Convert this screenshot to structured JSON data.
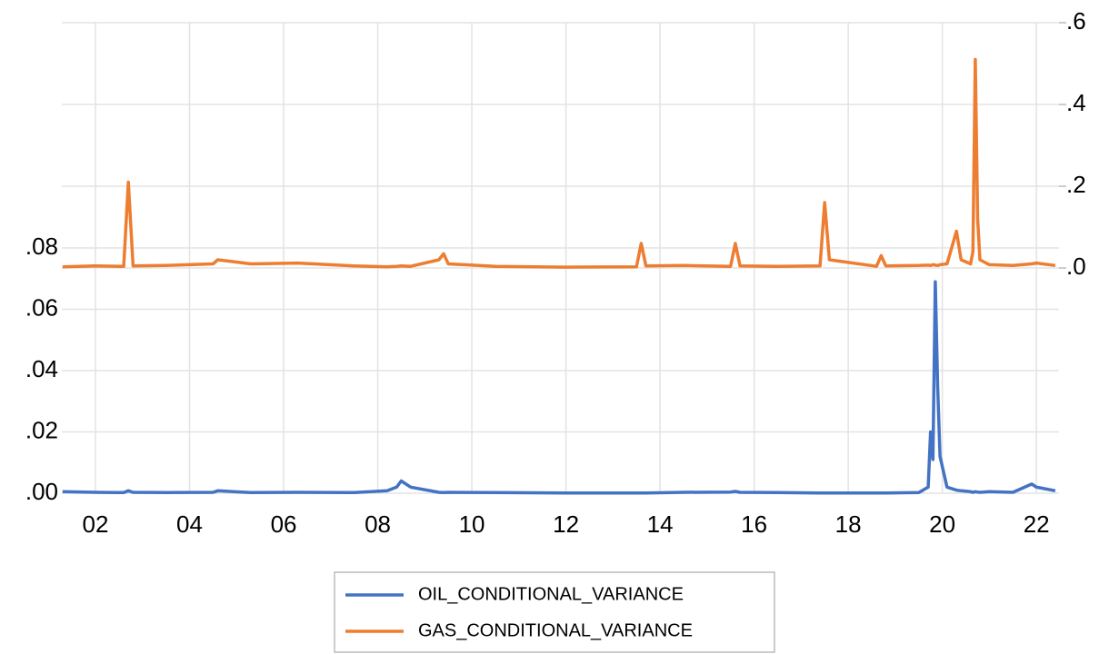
{
  "chart_data": {
    "type": "line",
    "x": [
      2001.3,
      2002.0,
      2002.6,
      2002.7,
      2002.8,
      2003.5,
      2004.5,
      2004.6,
      2005.3,
      2006.3,
      2007.5,
      2008.2,
      2008.4,
      2008.5,
      2008.7,
      2009.3,
      2009.4,
      2009.5,
      2010.5,
      2012.0,
      2013.5,
      2013.6,
      2013.7,
      2014.5,
      2015.5,
      2015.6,
      2015.7,
      2016.5,
      2017.4,
      2017.5,
      2017.6,
      2018.6,
      2018.7,
      2018.8,
      2019.5,
      2019.7,
      2019.75,
      2019.8,
      2019.85,
      2019.9,
      2019.95,
      2020.1,
      2020.3,
      2020.4,
      2020.6,
      2020.65,
      2020.7,
      2020.75,
      2020.8,
      2021.0,
      2021.5,
      2021.9,
      2022.0,
      2022.4
    ],
    "series": [
      {
        "name": "OIL_CONDITIONAL_VARIANCE",
        "color": "#4472c4",
        "values": [
          0.0005,
          0.0003,
          0.0002,
          0.0008,
          0.0003,
          0.0002,
          0.0003,
          0.0008,
          0.0002,
          0.0003,
          0.0002,
          0.0008,
          0.002,
          0.004,
          0.002,
          0.0003,
          0.0002,
          0.0003,
          0.0002,
          0.0001,
          0.0001,
          0.0001,
          0.0001,
          0.0003,
          0.0004,
          0.0006,
          0.0003,
          0.0002,
          0.0001,
          0.0001,
          0.0001,
          0.0001,
          0.0001,
          0.0001,
          0.0002,
          0.002,
          0.02,
          0.011,
          0.069,
          0.035,
          0.012,
          0.002,
          0.001,
          0.0008,
          0.0005,
          0.0003,
          0.0005,
          0.0004,
          0.0003,
          0.0005,
          0.0003,
          0.003,
          0.002,
          0.0008
        ]
      },
      {
        "name": "GAS_CONDITIONAL_VARIANCE",
        "color": "#ed7d31",
        "axis": "y2",
        "values": [
          0.003,
          0.005,
          0.004,
          0.21,
          0.005,
          0.006,
          0.01,
          0.02,
          0.01,
          0.012,
          0.005,
          0.003,
          0.004,
          0.005,
          0.004,
          0.02,
          0.035,
          0.01,
          0.004,
          0.002,
          0.003,
          0.06,
          0.005,
          0.006,
          0.004,
          0.06,
          0.005,
          0.004,
          0.005,
          0.16,
          0.02,
          0.004,
          0.03,
          0.005,
          0.006,
          0.007,
          0.006,
          0.008,
          0.007,
          0.006,
          0.008,
          0.01,
          0.09,
          0.02,
          0.01,
          0.04,
          0.51,
          0.12,
          0.02,
          0.008,
          0.006,
          0.01,
          0.012,
          0.006
        ]
      }
    ],
    "xlim": [
      2001.285,
      2022.48
    ],
    "xticks": [
      {
        "value": 2002,
        "label": "02"
      },
      {
        "value": 2004,
        "label": "04"
      },
      {
        "value": 2006,
        "label": "06"
      },
      {
        "value": 2008,
        "label": "08"
      },
      {
        "value": 2010,
        "label": "10"
      },
      {
        "value": 2012,
        "label": "12"
      },
      {
        "value": 2014,
        "label": "14"
      },
      {
        "value": 2016,
        "label": "16"
      },
      {
        "value": 2018,
        "label": "18"
      },
      {
        "value": 2020,
        "label": "20"
      },
      {
        "value": 2022,
        "label": "22"
      }
    ],
    "ylim": [
      0,
      0.1535
    ],
    "yticks": [
      {
        "value": 0,
        "label": ".00"
      },
      {
        "value": 0.02,
        "label": ".02"
      },
      {
        "value": 0.04,
        "label": ".04"
      },
      {
        "value": 0.06,
        "label": ".06"
      },
      {
        "value": 0.08,
        "label": ".08"
      }
    ],
    "y2lim": [
      -0.551,
      0.6
    ],
    "y2ticks": [
      {
        "value": 0,
        "label": ".0"
      },
      {
        "value": 0.2,
        "label": ".2"
      },
      {
        "value": 0.4,
        "label": ".4"
      },
      {
        "value": 0.6,
        "label": ".6"
      }
    ],
    "grid": true,
    "legend": "bottom"
  }
}
